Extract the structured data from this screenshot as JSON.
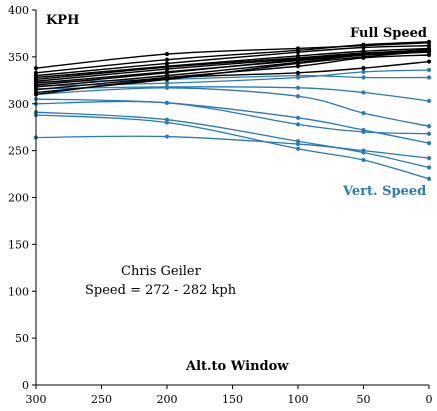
{
  "chart_data": {
    "type": "line",
    "ylabel": "KPH",
    "xlabel": "Alt.to Window",
    "x": [
      300,
      200,
      100,
      50,
      0
    ],
    "xticks": [
      300,
      250,
      200,
      150,
      100,
      50,
      0
    ],
    "yticks": [
      0,
      50,
      100,
      150,
      200,
      250,
      300,
      350,
      400
    ],
    "xlim": [
      300,
      0
    ],
    "ylim": [
      0,
      400
    ],
    "grid": false,
    "legend": "none",
    "annotations": {
      "full_speed": "Full Speed",
      "vert_speed": "Vert. Speed",
      "note_line1": "Chris Geiler",
      "note_line2": "Speed = 272 - 282 kph"
    },
    "colors": {
      "full": "#000000",
      "vert": "#2a7ab8"
    },
    "full_speed_series": [
      [
        338,
        353,
        359,
        362,
        365
      ],
      [
        333,
        347,
        357,
        363,
        366
      ],
      [
        330,
        343,
        355,
        360,
        362
      ],
      [
        328,
        340,
        351,
        356,
        359
      ],
      [
        326,
        339,
        349,
        354,
        357
      ],
      [
        324,
        337,
        348,
        354,
        357
      ],
      [
        322,
        334,
        346,
        352,
        355
      ],
      [
        320,
        333,
        347,
        353,
        358
      ],
      [
        318,
        330,
        344,
        352,
        356
      ],
      [
        315,
        328,
        340,
        349,
        352
      ],
      [
        312,
        326,
        343,
        350,
        356
      ],
      [
        310,
        327,
        333,
        338,
        345
      ]
    ],
    "vert_speed_series": [
      [
        323,
        326,
        330,
        328,
        328
      ],
      [
        319,
        322,
        328,
        334,
        336
      ],
      [
        316,
        318,
        317,
        312,
        303
      ],
      [
        310,
        317,
        308,
        290,
        276
      ],
      [
        305,
        301,
        285,
        272,
        258
      ],
      [
        300,
        301,
        278,
        270,
        268
      ],
      [
        291,
        283,
        260,
        248,
        232
      ],
      [
        288,
        280,
        252,
        240,
        220
      ],
      [
        264,
        265,
        257,
        250,
        242
      ]
    ]
  }
}
